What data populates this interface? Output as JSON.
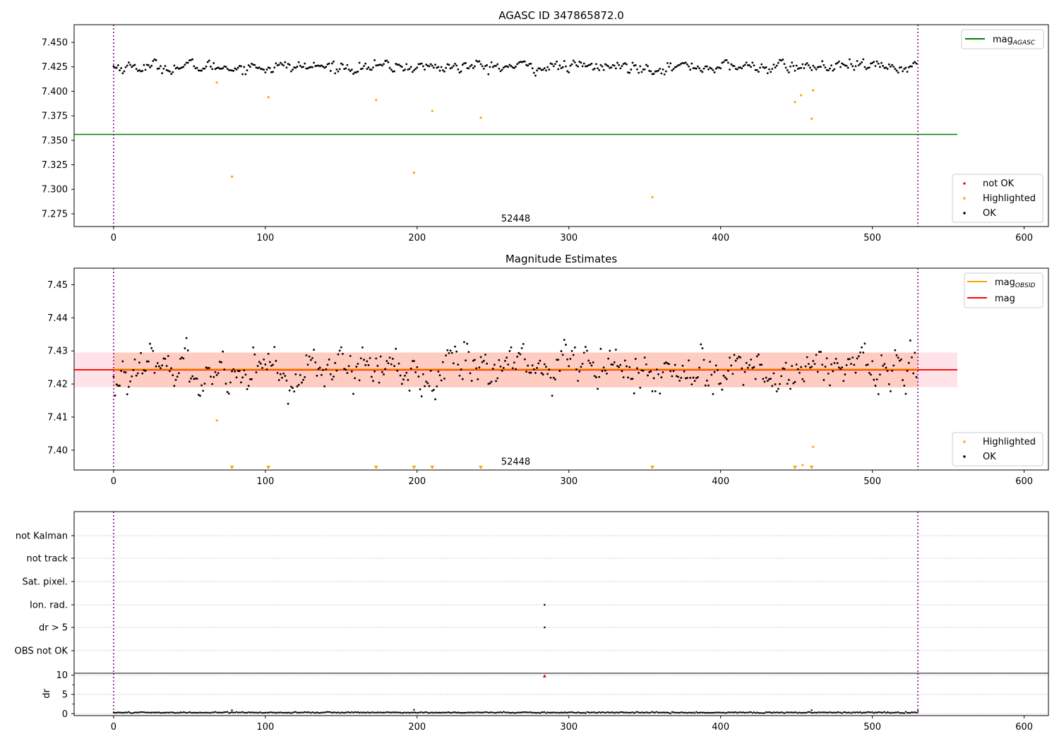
{
  "chart_data": [
    {
      "type": "scatter",
      "title": "AGASC ID 347865872.0",
      "xlim": [
        -26,
        616
      ],
      "ylim": [
        7.262,
        7.468
      ],
      "x_ticks": [
        0,
        100,
        200,
        300,
        400,
        500,
        600
      ],
      "y_ticks": [
        7.275,
        7.3,
        7.325,
        7.35,
        7.375,
        7.4,
        7.425,
        7.45
      ],
      "y_tick_labels": [
        "7.275",
        "7.300",
        "7.325",
        "7.350",
        "7.375",
        "7.400",
        "7.425",
        "7.450"
      ],
      "vlines": [
        0,
        530
      ],
      "annotation": {
        "text": "52448",
        "x": 265,
        "y": 7.27
      },
      "hline": {
        "name": "mag",
        "sub": "AGASC",
        "y": 7.356,
        "x_range": [
          -26,
          556
        ],
        "color": "#008000"
      },
      "ok_series": {
        "name": "OK",
        "color": "#000000",
        "n": 530,
        "center": 7.425,
        "noise": 0.005
      },
      "highlighted": {
        "name": "Highlighted",
        "color": "#ffa500",
        "points": [
          [
            68,
            7.409
          ],
          [
            78,
            7.313
          ],
          [
            102,
            7.394
          ],
          [
            173,
            7.391
          ],
          [
            198,
            7.317
          ],
          [
            210,
            7.38
          ],
          [
            242,
            7.373
          ],
          [
            355,
            7.292
          ],
          [
            449,
            7.389
          ],
          [
            453,
            7.396
          ],
          [
            460,
            7.372
          ],
          [
            461,
            7.401
          ]
        ]
      },
      "legend_top": {
        "placement": "top-right",
        "entries": [
          {
            "name": "mag",
            "sub": "AGASC",
            "color": "#008000"
          }
        ]
      },
      "legend_bottom": {
        "placement": "bottom-right",
        "entries": [
          {
            "name": "not OK",
            "color": "#ff0000"
          },
          {
            "name": "Highlighted",
            "color": "#ffa500"
          },
          {
            "name": "OK",
            "color": "#000000"
          }
        ]
      }
    },
    {
      "type": "scatter",
      "title": "Magnitude Estimates",
      "xlim": [
        -26,
        616
      ],
      "ylim": [
        7.394,
        7.455
      ],
      "x_ticks": [
        0,
        100,
        200,
        300,
        400,
        500,
        600
      ],
      "y_ticks": [
        7.4,
        7.41,
        7.42,
        7.43,
        7.44,
        7.45
      ],
      "y_tick_labels": [
        "7.40",
        "7.41",
        "7.42",
        "7.43",
        "7.44",
        "7.45"
      ],
      "vlines": [
        0,
        530
      ],
      "annotation": {
        "text": "52448",
        "x": 265,
        "y": 7.3965
      },
      "mag_line": {
        "name": "mag",
        "y": 7.4243,
        "x_range": [
          -26,
          556
        ],
        "color": "#ff0000"
      },
      "mag_band": {
        "y_range": [
          7.419,
          7.4295
        ],
        "x_range": [
          -26,
          556
        ],
        "color": "#ffc0cb"
      },
      "obsid_line": {
        "name": "mag",
        "sub": "OBSID",
        "y": 7.4245,
        "x_range": [
          0,
          530
        ],
        "color": "#ffa500"
      },
      "obsid_band": {
        "y_range": [
          7.419,
          7.4295
        ],
        "x_range": [
          0,
          530
        ],
        "color": "#ffa07a"
      },
      "ok_series": {
        "name": "OK",
        "color": "#000000",
        "n": 530,
        "center": 7.4245,
        "noise": 0.0055
      },
      "highlighted": {
        "name": "Highlighted",
        "color": "#ffa500",
        "points": [
          [
            68,
            7.409
          ],
          [
            461,
            7.401
          ],
          [
            454,
            7.3955
          ]
        ]
      },
      "below_range_markers": [
        78,
        102,
        173,
        198,
        210,
        242,
        355,
        449,
        460
      ],
      "legend_top": {
        "placement": "top-right",
        "entries": [
          {
            "name": "mag",
            "sub": "OBSID",
            "color": "#ffa500"
          },
          {
            "name": "mag",
            "color": "#ff0000"
          }
        ]
      },
      "legend_bottom": {
        "placement": "bottom-right",
        "entries": [
          {
            "name": "Highlighted",
            "color": "#ffa500"
          },
          {
            "name": "OK",
            "color": "#000000"
          }
        ]
      }
    },
    {
      "type": "scatter",
      "title": "",
      "xlim": [
        -26,
        616
      ],
      "categories": [
        "not Kalman",
        "not track",
        "Sat. pixel.",
        "Ion. rad.",
        "dr > 5",
        "OBS not OK"
      ],
      "vlines": [
        0,
        530
      ],
      "flag_points": [
        {
          "category": "Ion. rad.",
          "x": 284
        },
        {
          "category": "dr > 5",
          "x": 284
        }
      ]
    },
    {
      "type": "scatter",
      "title": "",
      "xlim": [
        -26,
        616
      ],
      "ylim": [
        -0.5,
        10.5
      ],
      "x_ticks": [
        0,
        100,
        200,
        300,
        400,
        500,
        600
      ],
      "y_ticks": [
        0,
        5,
        10
      ],
      "y_tick_labels": [
        "0",
        "5",
        "10"
      ],
      "ylabel": "dr",
      "vlines": [
        0,
        530
      ],
      "ok_series": {
        "name": "OK",
        "color": "#000000",
        "n": 530,
        "center": 0.3,
        "noise": 0.12
      },
      "outliers": [
        [
          78,
          0.9
        ],
        [
          198,
          1.0
        ],
        [
          460,
          0.9
        ],
        [
          530,
          0.7
        ]
      ],
      "not_ok_points": [
        [
          284,
          9.8
        ]
      ]
    }
  ]
}
